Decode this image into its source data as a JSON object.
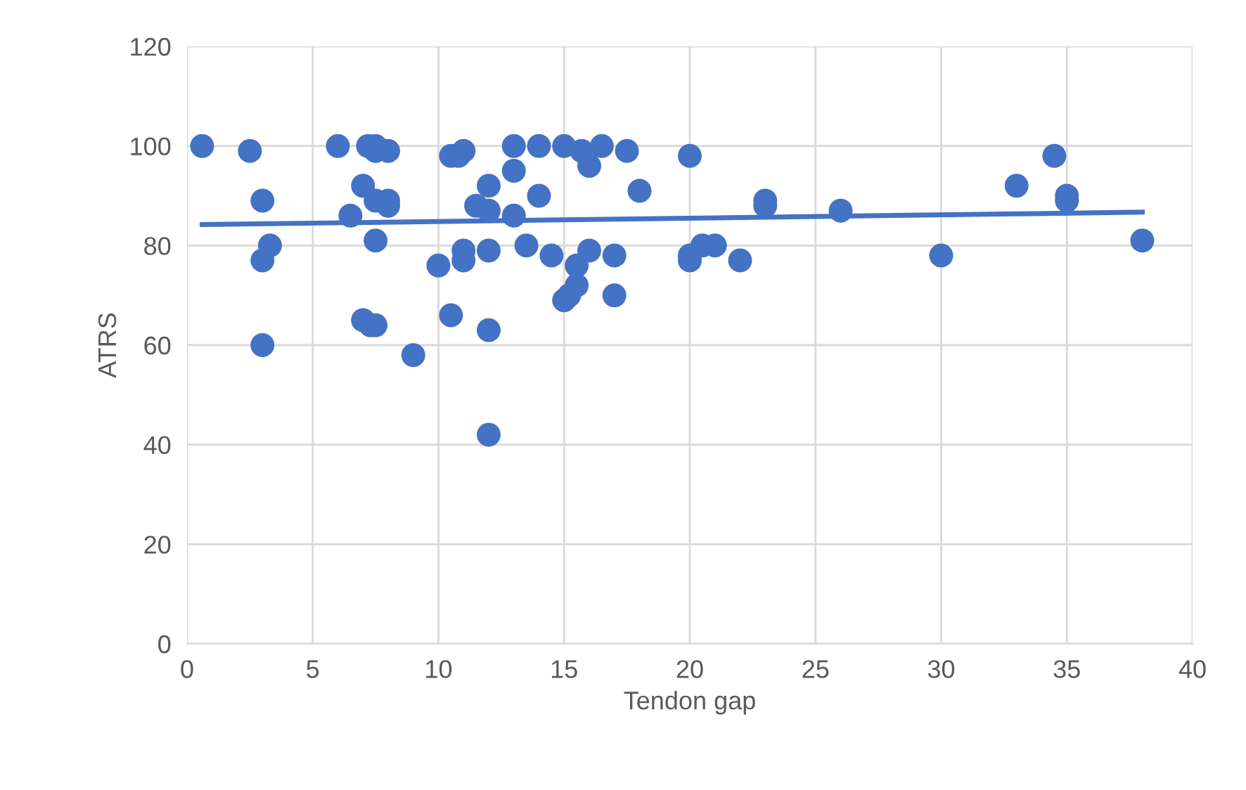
{
  "chart_data": {
    "type": "scatter",
    "xlabel": "Tendon gap",
    "ylabel": "ATRS",
    "xlim": [
      0,
      40
    ],
    "ylim": [
      0,
      120
    ],
    "xticks": [
      0,
      5,
      10,
      15,
      20,
      25,
      30,
      35,
      40
    ],
    "yticks": [
      0,
      20,
      40,
      60,
      80,
      100,
      120
    ],
    "grid": true,
    "legend": false,
    "series": [
      {
        "marker": "circle",
        "color": "#4472c4",
        "x": [
          0.6,
          2.5,
          3,
          3,
          3.3,
          3,
          6,
          6.5,
          7,
          7,
          7.2,
          7.5,
          7.5,
          7.5,
          7.5,
          7.5,
          7.3,
          8,
          8,
          8,
          9,
          10,
          10.5,
          10.5,
          10.8,
          11,
          11,
          11,
          11.5,
          12,
          12,
          12,
          12,
          12,
          13,
          13,
          13,
          13.5,
          14,
          14,
          14.5,
          15,
          15,
          15.2,
          15.5,
          15.5,
          15.7,
          16,
          16,
          16.5,
          17,
          17,
          17.5,
          18,
          20,
          20,
          20,
          20.5,
          21,
          22,
          23,
          23,
          26,
          30,
          33,
          34.5,
          35,
          35,
          38
        ],
        "values": [
          100,
          99,
          89,
          77,
          80,
          60,
          100,
          86,
          92,
          65,
          100,
          99,
          100,
          89,
          81,
          64,
          64,
          99,
          88,
          89,
          58,
          76,
          98,
          66,
          98,
          99,
          79,
          77,
          88,
          87,
          92,
          79,
          63,
          42,
          100,
          95,
          86,
          80,
          100,
          90,
          78,
          100,
          69,
          70,
          76,
          72,
          99,
          79,
          96,
          100,
          78,
          70,
          99,
          91,
          98,
          78,
          77,
          80,
          80,
          77,
          89,
          88,
          87,
          78,
          92,
          98,
          90,
          89,
          81
        ]
      },
      {
        "type": "line",
        "marker": "none",
        "color": "#4472c4",
        "x": [
          0.6,
          38
        ],
        "values": [
          84.2,
          86.7
        ]
      }
    ]
  }
}
